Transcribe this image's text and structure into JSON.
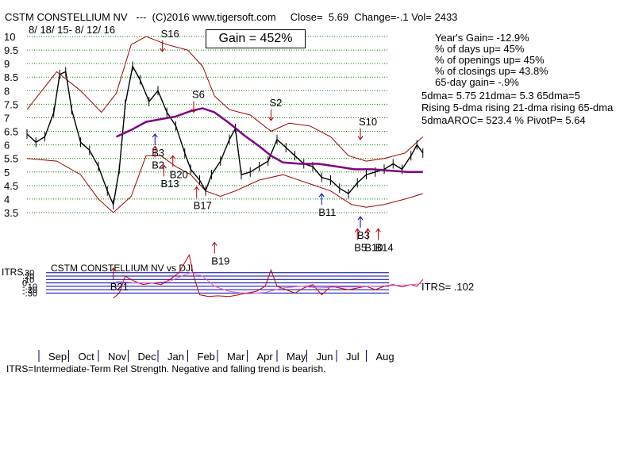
{
  "header": {
    "title": "CSTM CONSTELLIUM NV   ---  (C)2016 www.tigersoft.com     Close=  5.69  Change=-.1 Vol= 2433",
    "date_range": "8/ 18/ 15-  8/ 12/ 16",
    "gain_box": "Gain = 452%"
  },
  "stats": {
    "years_gain": "Year's Gain= -12.9%",
    "days_up": "% of days up= 45%",
    "openings_up": "% of openings up= 45%",
    "closings_up": "% of closings up= 43.8%",
    "gain_65": "65-day gain= -.9%",
    "dma": "5dma= 5.75 21dma= 5.3 65dma=5",
    "rising": "Rising 5-dma rising 21-dma rising 65-dma",
    "aroc": "5dmaAROC= 523.4  %  PivotP= 5.64",
    "itrs_value": "ITRS= .102"
  },
  "footer": "ITRS=Intermediate-Term Rel Strength. Negative and falling trend is bearish.",
  "chart_data": {
    "type": "line",
    "price_axis": {
      "ticks": [
        10,
        9.5,
        9,
        8.5,
        8,
        7.5,
        7,
        6.5,
        6,
        5.5,
        5,
        4.5,
        4,
        3.5
      ],
      "labels": [
        "10",
        "9.5",
        "9",
        "8.5",
        "8",
        "7.5",
        "7",
        "6.5",
        "6",
        "5.5",
        "5",
        "4.5",
        "4",
        "3.5"
      ],
      "ylim": [
        3.5,
        10
      ]
    },
    "months": [
      "Sep",
      "Oct",
      "Nov",
      "Dec",
      "Jan",
      "Feb",
      "Mar",
      "Apr",
      "May",
      "Jun",
      "Jul",
      "Aug"
    ],
    "price_series": [
      {
        "m": 0.0,
        "v": 6.4
      },
      {
        "m": 0.3,
        "v": 6.1
      },
      {
        "m": 0.6,
        "v": 6.3
      },
      {
        "m": 0.9,
        "v": 7.2
      },
      {
        "m": 1.1,
        "v": 8.6
      },
      {
        "m": 1.3,
        "v": 8.7
      },
      {
        "m": 1.5,
        "v": 7.3
      },
      {
        "m": 1.8,
        "v": 6.1
      },
      {
        "m": 2.1,
        "v": 5.8
      },
      {
        "m": 2.4,
        "v": 5.2
      },
      {
        "m": 2.7,
        "v": 4.3
      },
      {
        "m": 2.9,
        "v": 3.8
      },
      {
        "m": 3.1,
        "v": 5.1
      },
      {
        "m": 3.3,
        "v": 7.5
      },
      {
        "m": 3.55,
        "v": 8.9
      },
      {
        "m": 3.8,
        "v": 8.4
      },
      {
        "m": 4.1,
        "v": 7.6
      },
      {
        "m": 4.4,
        "v": 8.0
      },
      {
        "m": 4.7,
        "v": 7.2
      },
      {
        "m": 5.0,
        "v": 6.7
      },
      {
        "m": 5.3,
        "v": 5.7
      },
      {
        "m": 5.5,
        "v": 5.1
      },
      {
        "m": 5.8,
        "v": 4.7
      },
      {
        "m": 6.0,
        "v": 4.3
      },
      {
        "m": 6.2,
        "v": 4.9
      },
      {
        "m": 6.5,
        "v": 5.4
      },
      {
        "m": 6.8,
        "v": 6.2
      },
      {
        "m": 7.0,
        "v": 6.6
      },
      {
        "m": 7.2,
        "v": 4.9
      },
      {
        "m": 7.5,
        "v": 5.0
      },
      {
        "m": 7.8,
        "v": 5.2
      },
      {
        "m": 8.1,
        "v": 5.4
      },
      {
        "m": 8.4,
        "v": 6.2
      },
      {
        "m": 8.7,
        "v": 5.9
      },
      {
        "m": 9.0,
        "v": 5.6
      },
      {
        "m": 9.3,
        "v": 5.3
      },
      {
        "m": 9.6,
        "v": 5.2
      },
      {
        "m": 9.9,
        "v": 4.8
      },
      {
        "m": 10.2,
        "v": 4.7
      },
      {
        "m": 10.5,
        "v": 4.4
      },
      {
        "m": 10.8,
        "v": 4.2
      },
      {
        "m": 11.1,
        "v": 4.6
      },
      {
        "m": 11.4,
        "v": 4.9
      },
      {
        "m": 11.7,
        "v": 5.0
      },
      {
        "m": 12.0,
        "v": 5.1
      },
      {
        "m": 12.3,
        "v": 5.3
      },
      {
        "m": 12.6,
        "v": 5.1
      },
      {
        "m": 12.9,
        "v": 5.6
      },
      {
        "m": 13.1,
        "v": 6.0
      },
      {
        "m": 13.3,
        "v": 5.7
      }
    ],
    "ma65": [
      {
        "m": 3.0,
        "v": 6.3
      },
      {
        "m": 3.5,
        "v": 6.55
      },
      {
        "m": 4.0,
        "v": 6.85
      },
      {
        "m": 4.5,
        "v": 6.95
      },
      {
        "m": 5.0,
        "v": 7.05
      },
      {
        "m": 5.5,
        "v": 7.25
      },
      {
        "m": 5.9,
        "v": 7.35
      },
      {
        "m": 6.3,
        "v": 7.2
      },
      {
        "m": 6.8,
        "v": 6.8
      },
      {
        "m": 7.3,
        "v": 6.35
      },
      {
        "m": 7.8,
        "v": 5.95
      },
      {
        "m": 8.2,
        "v": 5.6
      },
      {
        "m": 8.6,
        "v": 5.35
      },
      {
        "m": 9.2,
        "v": 5.3
      },
      {
        "m": 9.8,
        "v": 5.3
      },
      {
        "m": 10.4,
        "v": 5.2
      },
      {
        "m": 11.0,
        "v": 5.1
      },
      {
        "m": 11.6,
        "v": 5.1
      },
      {
        "m": 12.2,
        "v": 5.05
      },
      {
        "m": 12.8,
        "v": 5.0
      },
      {
        "m": 13.3,
        "v": 5.0
      }
    ],
    "band_upper": [
      {
        "m": 0.0,
        "v": 7.3
      },
      {
        "m": 1.0,
        "v": 8.7
      },
      {
        "m": 1.8,
        "v": 8.0
      },
      {
        "m": 2.5,
        "v": 7.2
      },
      {
        "m": 3.0,
        "v": 7.9
      },
      {
        "m": 3.5,
        "v": 9.7
      },
      {
        "m": 4.0,
        "v": 10.0
      },
      {
        "m": 4.7,
        "v": 9.7
      },
      {
        "m": 5.4,
        "v": 9.5
      },
      {
        "m": 5.9,
        "v": 8.9
      },
      {
        "m": 6.3,
        "v": 7.8
      },
      {
        "m": 6.8,
        "v": 7.3
      },
      {
        "m": 7.5,
        "v": 7.1
      },
      {
        "m": 8.2,
        "v": 6.5
      },
      {
        "m": 8.8,
        "v": 6.8
      },
      {
        "m": 9.5,
        "v": 6.7
      },
      {
        "m": 10.2,
        "v": 6.3
      },
      {
        "m": 10.8,
        "v": 5.6
      },
      {
        "m": 11.4,
        "v": 5.4
      },
      {
        "m": 12.0,
        "v": 5.5
      },
      {
        "m": 12.7,
        "v": 5.7
      },
      {
        "m": 13.3,
        "v": 6.3
      }
    ],
    "band_lower": [
      {
        "m": 0.0,
        "v": 5.5
      },
      {
        "m": 1.0,
        "v": 5.4
      },
      {
        "m": 1.8,
        "v": 4.9
      },
      {
        "m": 2.4,
        "v": 4.0
      },
      {
        "m": 2.9,
        "v": 3.5
      },
      {
        "m": 3.5,
        "v": 4.1
      },
      {
        "m": 4.0,
        "v": 5.6
      },
      {
        "m": 4.5,
        "v": 5.6
      },
      {
        "m": 5.0,
        "v": 5.2
      },
      {
        "m": 5.5,
        "v": 4.9
      },
      {
        "m": 6.0,
        "v": 4.3
      },
      {
        "m": 6.5,
        "v": 4.1
      },
      {
        "m": 7.0,
        "v": 4.3
      },
      {
        "m": 7.8,
        "v": 4.7
      },
      {
        "m": 8.6,
        "v": 4.9
      },
      {
        "m": 9.4,
        "v": 4.6
      },
      {
        "m": 10.2,
        "v": 4.3
      },
      {
        "m": 10.9,
        "v": 3.8
      },
      {
        "m": 11.4,
        "v": 3.7
      },
      {
        "m": 12.0,
        "v": 3.8
      },
      {
        "m": 12.7,
        "v": 4.0
      },
      {
        "m": 13.3,
        "v": 4.2
      }
    ],
    "signals": [
      {
        "label": "S16",
        "m": 4.55,
        "v": 9.45,
        "dir": "down",
        "color": "#b00000"
      },
      {
        "label": "S6",
        "m": 5.6,
        "v": 7.2,
        "dir": "down",
        "color": "#b00000"
      },
      {
        "label": "S2",
        "m": 8.2,
        "v": 6.9,
        "dir": "down",
        "color": "#b00000"
      },
      {
        "label": "S10",
        "m": 11.2,
        "v": 6.2,
        "dir": "down",
        "color": "#b00000"
      },
      {
        "label": "B3",
        "m": 4.3,
        "v": 6.4,
        "dir": "up",
        "color": "#0000c0"
      },
      {
        "label": "B2",
        "m": 4.3,
        "v": 5.95,
        "dir": "up",
        "color": "#b00000"
      },
      {
        "label": "B20",
        "m": 4.9,
        "v": 5.6,
        "dir": "up",
        "color": "#b00000"
      },
      {
        "label": "B13",
        "m": 4.6,
        "v": 5.25,
        "dir": "up",
        "color": "#b00000"
      },
      {
        "label": "B17",
        "m": 5.7,
        "v": 4.45,
        "dir": "up",
        "color": "#b00000"
      },
      {
        "label": "B11",
        "m": 9.9,
        "v": 4.2,
        "dir": "up",
        "color": "#0000c0"
      },
      {
        "label": "B3",
        "m": 11.2,
        "v": 3.35,
        "dir": "up",
        "color": "#0000c0"
      },
      {
        "label": "B19",
        "m": 6.3,
        "v": 2.4,
        "dir": "up",
        "color": "#b00000"
      },
      {
        "label": "B21",
        "m": 2.9,
        "v": 1.45,
        "dir": "up",
        "color": "#b00000"
      },
      {
        "label": "B5",
        "m": 11.1,
        "v": 2.9,
        "dir": "up",
        "color": "#b00000"
      },
      {
        "label": "B10",
        "m": 11.45,
        "v": 2.9,
        "dir": "up",
        "color": "#b00000"
      },
      {
        "label": "B14",
        "m": 11.8,
        "v": 2.9,
        "dir": "up",
        "color": "#b00000"
      }
    ],
    "itrs_panel": {
      "title": "CSTM CONSTELLIUM NV vs DJI",
      "axis_label": "ITRS",
      "ticks": [
        ".30",
        ".20",
        ".10",
        "0",
        "-.10",
        "-.20",
        "-.30"
      ],
      "tick_values": [
        0.3,
        0.2,
        0.1,
        0,
        -0.1,
        -0.2,
        -0.3
      ],
      "ylim": [
        -0.5,
        0.9
      ],
      "itrs": [
        {
          "m": 2.9,
          "v": -0.45
        },
        {
          "m": 3.1,
          "v": -0.3
        },
        {
          "m": 3.3,
          "v": 0.2
        },
        {
          "m": 3.6,
          "v": 0.05
        },
        {
          "m": 3.9,
          "v": -0.05
        },
        {
          "m": 4.2,
          "v": 0.0
        },
        {
          "m": 4.5,
          "v": -0.05
        },
        {
          "m": 4.8,
          "v": 0.1
        },
        {
          "m": 5.1,
          "v": 0.3
        },
        {
          "m": 5.3,
          "v": 0.6
        },
        {
          "m": 5.45,
          "v": 0.82
        },
        {
          "m": 5.6,
          "v": 0.2
        },
        {
          "m": 5.8,
          "v": -0.35
        },
        {
          "m": 6.1,
          "v": -0.4
        },
        {
          "m": 6.4,
          "v": -0.38
        },
        {
          "m": 6.8,
          "v": -0.4
        },
        {
          "m": 7.1,
          "v": -0.35
        },
        {
          "m": 7.4,
          "v": -0.3
        },
        {
          "m": 7.7,
          "v": -0.25
        },
        {
          "m": 8.0,
          "v": -0.1
        },
        {
          "m": 8.2,
          "v": 0.38
        },
        {
          "m": 8.4,
          "v": -0.1
        },
        {
          "m": 8.7,
          "v": -0.2
        },
        {
          "m": 9.0,
          "v": -0.3
        },
        {
          "m": 9.3,
          "v": -0.15
        },
        {
          "m": 9.6,
          "v": -0.05
        },
        {
          "m": 9.9,
          "v": -0.35
        },
        {
          "m": 10.2,
          "v": -0.1
        },
        {
          "m": 10.5,
          "v": -0.15
        },
        {
          "m": 10.8,
          "v": -0.2
        },
        {
          "m": 11.1,
          "v": -0.15
        },
        {
          "m": 11.4,
          "v": -0.1
        },
        {
          "m": 11.7,
          "v": -0.2
        },
        {
          "m": 12.0,
          "v": -0.1
        },
        {
          "m": 12.3,
          "v": -0.05
        },
        {
          "m": 12.6,
          "v": -0.12
        },
        {
          "m": 12.9,
          "v": -0.05
        },
        {
          "m": 13.1,
          "v": -0.1
        },
        {
          "m": 13.3,
          "v": 0.1
        }
      ],
      "itrs_ma": [
        {
          "m": 3.0,
          "v": 0.05
        },
        {
          "m": 3.6,
          "v": 0.0
        },
        {
          "m": 4.2,
          "v": 0.0
        },
        {
          "m": 4.8,
          "v": 0.05
        },
        {
          "m": 5.2,
          "v": 0.2
        },
        {
          "m": 5.5,
          "v": 0.3
        },
        {
          "m": 5.9,
          "v": 0.2
        },
        {
          "m": 6.3,
          "v": -0.1
        },
        {
          "m": 6.8,
          "v": -0.25
        },
        {
          "m": 7.4,
          "v": -0.32
        },
        {
          "m": 8.0,
          "v": -0.28
        },
        {
          "m": 8.6,
          "v": -0.15
        },
        {
          "m": 9.2,
          "v": -0.1
        },
        {
          "m": 9.8,
          "v": -0.15
        },
        {
          "m": 10.4,
          "v": -0.12
        },
        {
          "m": 11.0,
          "v": -0.12
        },
        {
          "m": 11.6,
          "v": -0.1
        },
        {
          "m": 12.2,
          "v": -0.08
        },
        {
          "m": 12.8,
          "v": -0.06
        },
        {
          "m": 13.3,
          "v": -0.02
        }
      ]
    },
    "colors": {
      "price": "#000000",
      "band": "#a00000",
      "ma65": "#800080",
      "grid": "#008000",
      "itrs": "#c00000",
      "itrs_ma": "#e060e0",
      "itrs_lines": "#0000a0"
    }
  }
}
